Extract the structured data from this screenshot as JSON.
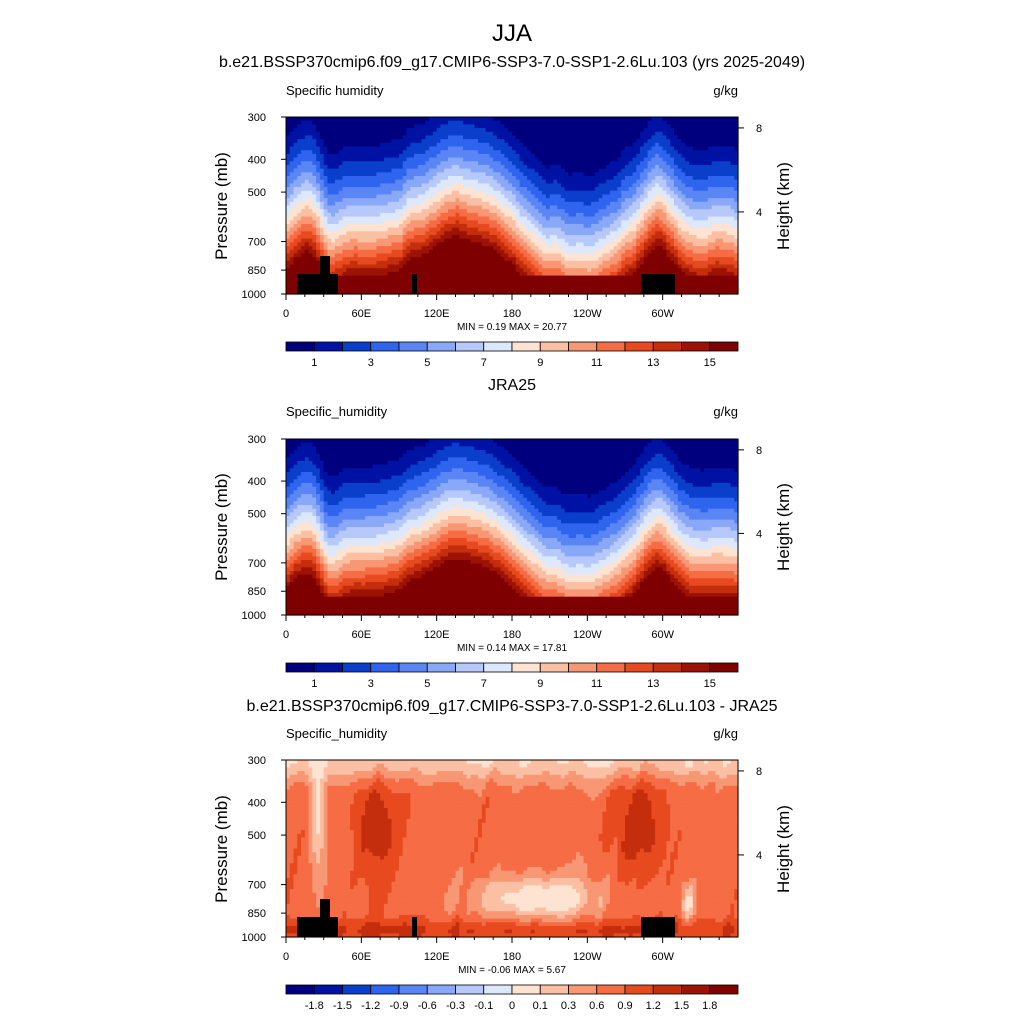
{
  "figure": {
    "season": "JJA"
  },
  "chart_data": [
    {
      "type": "heatmap",
      "panel_title": "b.e21.BSSP370cmip6.f09_g17.CMIP6-SSP3-7.0-SSP1-2.6Lu.103 (yrs 2025-2049)",
      "left_string": "Specific humidity",
      "units": "g/kg",
      "ylabel": "Pressure (mb)",
      "y2label": "Height (km)",
      "y_scale": "log",
      "ylim": [
        1000,
        300
      ],
      "xlim": [
        0,
        360
      ],
      "yticks": [
        "300",
        "400",
        "500",
        "700",
        "850",
        "1000"
      ],
      "y2ticks": [
        "8",
        "4"
      ],
      "xticks": [
        "0",
        "60E",
        "120E",
        "180",
        "120W",
        "60W"
      ],
      "minmax_label": "MIN =   0.19  MAX =  20.77",
      "min": 0.19,
      "max": 20.77,
      "colorbar_labels": [
        "1",
        "3",
        "5",
        "7",
        "9",
        "11",
        "13",
        "15"
      ],
      "colorbar_levels": [
        0.5,
        1,
        2,
        3,
        4,
        5,
        6,
        7,
        8,
        9,
        10,
        11,
        12,
        13,
        14,
        15
      ]
    },
    {
      "type": "heatmap",
      "panel_title": "JRA25",
      "left_string": "Specific_humidity",
      "units": "g/kg",
      "ylabel": "Pressure (mb)",
      "y2label": "Height (km)",
      "y_scale": "log",
      "ylim": [
        1000,
        300
      ],
      "xlim": [
        0,
        360
      ],
      "yticks": [
        "300",
        "400",
        "500",
        "700",
        "850",
        "1000"
      ],
      "y2ticks": [
        "8",
        "4"
      ],
      "xticks": [
        "0",
        "60E",
        "120E",
        "180",
        "120W",
        "60W"
      ],
      "minmax_label": "MIN =   0.14  MAX =  17.81",
      "min": 0.14,
      "max": 17.81,
      "colorbar_labels": [
        "1",
        "3",
        "5",
        "7",
        "9",
        "11",
        "13",
        "15"
      ],
      "colorbar_levels": [
        0.5,
        1,
        2,
        3,
        4,
        5,
        6,
        7,
        8,
        9,
        10,
        11,
        12,
        13,
        14,
        15
      ]
    },
    {
      "type": "heatmap",
      "panel_title": "b.e21.BSSP370cmip6.f09_g17.CMIP6-SSP3-7.0-SSP1-2.6Lu.103 - JRA25",
      "left_string": "Specific_humidity",
      "units": "g/kg",
      "ylabel": "Pressure (mb)",
      "y2label": "Height (km)",
      "y_scale": "log",
      "ylim": [
        1000,
        300
      ],
      "xlim": [
        0,
        360
      ],
      "yticks": [
        "300",
        "400",
        "500",
        "700",
        "850",
        "1000"
      ],
      "y2ticks": [
        "8",
        "4"
      ],
      "xticks": [
        "0",
        "60E",
        "120E",
        "180",
        "120W",
        "60W"
      ],
      "minmax_label": "MIN =  -0.06  MAX =   5.67",
      "min": -0.06,
      "max": 5.67,
      "colorbar_labels": [
        "-1.8",
        "-1.5",
        "-1.2",
        "-0.9",
        "-0.6",
        "-0.3",
        "-0.1",
        "0",
        "0.1",
        "0.3",
        "0.6",
        "0.9",
        "1.2",
        "1.5",
        "1.8"
      ],
      "colorbar_levels": [
        -2.1,
        -1.8,
        -1.5,
        -1.2,
        -0.9,
        -0.6,
        -0.3,
        -0.1,
        0,
        0.1,
        0.3,
        0.6,
        0.9,
        1.2,
        1.5,
        1.8
      ]
    }
  ],
  "palette": [
    "#00007f",
    "#0012a3",
    "#0a3fcb",
    "#2f64ee",
    "#5a86f5",
    "#8aa8f8",
    "#b6c9fa",
    "#dde8fc",
    "#fde3d2",
    "#fbc0a4",
    "#f89774",
    "#f56c45",
    "#e84a20",
    "#c42e0c",
    "#9c1204",
    "#7f0000"
  ]
}
